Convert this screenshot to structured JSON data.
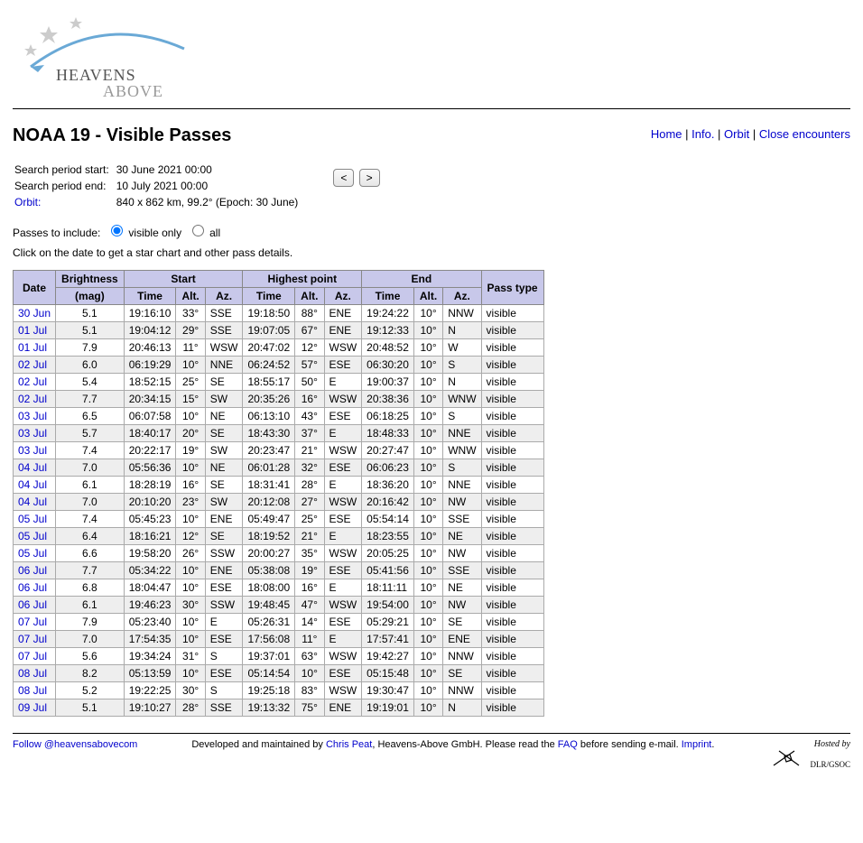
{
  "site": {
    "name": "HEAVENS ABOVE"
  },
  "nav": {
    "home": "Home",
    "info": "Info.",
    "orbit": "Orbit",
    "encounters": "Close encounters",
    "sep": " | "
  },
  "page": {
    "title": "NOAA 19 - Visible Passes",
    "search_start_label": "Search period start:",
    "search_start_value": "30 June 2021 00:00",
    "search_end_label": "Search period end:",
    "search_end_value": "10 July 2021 00:00",
    "orbit_label": "Orbit:",
    "orbit_value": "840 x 862 km, 99.2° (Epoch: 30 June)",
    "prev_btn": "<",
    "next_btn": ">",
    "include_label": "Passes to include:",
    "opt_visible": "visible only",
    "opt_all": "all",
    "hint": "Click on the date to get a star chart and other pass details."
  },
  "table": {
    "headers": {
      "date": "Date",
      "brightness": "Brightness",
      "mag": "(mag)",
      "start": "Start",
      "highest": "Highest point",
      "end": "End",
      "time": "Time",
      "alt": "Alt.",
      "az": "Az.",
      "passtype": "Pass type"
    },
    "rows": [
      {
        "date": "30 Jun",
        "mag": "5.1",
        "s_t": "19:16:10",
        "s_a": "33°",
        "s_z": "SSE",
        "h_t": "19:18:50",
        "h_a": "88°",
        "h_z": "ENE",
        "e_t": "19:24:22",
        "e_a": "10°",
        "e_z": "NNW",
        "type": "visible"
      },
      {
        "date": "01 Jul",
        "mag": "5.1",
        "s_t": "19:04:12",
        "s_a": "29°",
        "s_z": "SSE",
        "h_t": "19:07:05",
        "h_a": "67°",
        "h_z": "ENE",
        "e_t": "19:12:33",
        "e_a": "10°",
        "e_z": "N",
        "type": "visible"
      },
      {
        "date": "01 Jul",
        "mag": "7.9",
        "s_t": "20:46:13",
        "s_a": "11°",
        "s_z": "WSW",
        "h_t": "20:47:02",
        "h_a": "12°",
        "h_z": "WSW",
        "e_t": "20:48:52",
        "e_a": "10°",
        "e_z": "W",
        "type": "visible"
      },
      {
        "date": "02 Jul",
        "mag": "6.0",
        "s_t": "06:19:29",
        "s_a": "10°",
        "s_z": "NNE",
        "h_t": "06:24:52",
        "h_a": "57°",
        "h_z": "ESE",
        "e_t": "06:30:20",
        "e_a": "10°",
        "e_z": "S",
        "type": "visible"
      },
      {
        "date": "02 Jul",
        "mag": "5.4",
        "s_t": "18:52:15",
        "s_a": "25°",
        "s_z": "SE",
        "h_t": "18:55:17",
        "h_a": "50°",
        "h_z": "E",
        "e_t": "19:00:37",
        "e_a": "10°",
        "e_z": "N",
        "type": "visible"
      },
      {
        "date": "02 Jul",
        "mag": "7.7",
        "s_t": "20:34:15",
        "s_a": "15°",
        "s_z": "SW",
        "h_t": "20:35:26",
        "h_a": "16°",
        "h_z": "WSW",
        "e_t": "20:38:36",
        "e_a": "10°",
        "e_z": "WNW",
        "type": "visible"
      },
      {
        "date": "03 Jul",
        "mag": "6.5",
        "s_t": "06:07:58",
        "s_a": "10°",
        "s_z": "NE",
        "h_t": "06:13:10",
        "h_a": "43°",
        "h_z": "ESE",
        "e_t": "06:18:25",
        "e_a": "10°",
        "e_z": "S",
        "type": "visible"
      },
      {
        "date": "03 Jul",
        "mag": "5.7",
        "s_t": "18:40:17",
        "s_a": "20°",
        "s_z": "SE",
        "h_t": "18:43:30",
        "h_a": "37°",
        "h_z": "E",
        "e_t": "18:48:33",
        "e_a": "10°",
        "e_z": "NNE",
        "type": "visible"
      },
      {
        "date": "03 Jul",
        "mag": "7.4",
        "s_t": "20:22:17",
        "s_a": "19°",
        "s_z": "SW",
        "h_t": "20:23:47",
        "h_a": "21°",
        "h_z": "WSW",
        "e_t": "20:27:47",
        "e_a": "10°",
        "e_z": "WNW",
        "type": "visible"
      },
      {
        "date": "04 Jul",
        "mag": "7.0",
        "s_t": "05:56:36",
        "s_a": "10°",
        "s_z": "NE",
        "h_t": "06:01:28",
        "h_a": "32°",
        "h_z": "ESE",
        "e_t": "06:06:23",
        "e_a": "10°",
        "e_z": "S",
        "type": "visible"
      },
      {
        "date": "04 Jul",
        "mag": "6.1",
        "s_t": "18:28:19",
        "s_a": "16°",
        "s_z": "SE",
        "h_t": "18:31:41",
        "h_a": "28°",
        "h_z": "E",
        "e_t": "18:36:20",
        "e_a": "10°",
        "e_z": "NNE",
        "type": "visible"
      },
      {
        "date": "04 Jul",
        "mag": "7.0",
        "s_t": "20:10:20",
        "s_a": "23°",
        "s_z": "SW",
        "h_t": "20:12:08",
        "h_a": "27°",
        "h_z": "WSW",
        "e_t": "20:16:42",
        "e_a": "10°",
        "e_z": "NW",
        "type": "visible"
      },
      {
        "date": "05 Jul",
        "mag": "7.4",
        "s_t": "05:45:23",
        "s_a": "10°",
        "s_z": "ENE",
        "h_t": "05:49:47",
        "h_a": "25°",
        "h_z": "ESE",
        "e_t": "05:54:14",
        "e_a": "10°",
        "e_z": "SSE",
        "type": "visible"
      },
      {
        "date": "05 Jul",
        "mag": "6.4",
        "s_t": "18:16:21",
        "s_a": "12°",
        "s_z": "SE",
        "h_t": "18:19:52",
        "h_a": "21°",
        "h_z": "E",
        "e_t": "18:23:55",
        "e_a": "10°",
        "e_z": "NE",
        "type": "visible"
      },
      {
        "date": "05 Jul",
        "mag": "6.6",
        "s_t": "19:58:20",
        "s_a": "26°",
        "s_z": "SSW",
        "h_t": "20:00:27",
        "h_a": "35°",
        "h_z": "WSW",
        "e_t": "20:05:25",
        "e_a": "10°",
        "e_z": "NW",
        "type": "visible"
      },
      {
        "date": "06 Jul",
        "mag": "7.7",
        "s_t": "05:34:22",
        "s_a": "10°",
        "s_z": "ENE",
        "h_t": "05:38:08",
        "h_a": "19°",
        "h_z": "ESE",
        "e_t": "05:41:56",
        "e_a": "10°",
        "e_z": "SSE",
        "type": "visible"
      },
      {
        "date": "06 Jul",
        "mag": "6.8",
        "s_t": "18:04:47",
        "s_a": "10°",
        "s_z": "ESE",
        "h_t": "18:08:00",
        "h_a": "16°",
        "h_z": "E",
        "e_t": "18:11:11",
        "e_a": "10°",
        "e_z": "NE",
        "type": "visible"
      },
      {
        "date": "06 Jul",
        "mag": "6.1",
        "s_t": "19:46:23",
        "s_a": "30°",
        "s_z": "SSW",
        "h_t": "19:48:45",
        "h_a": "47°",
        "h_z": "WSW",
        "e_t": "19:54:00",
        "e_a": "10°",
        "e_z": "NW",
        "type": "visible"
      },
      {
        "date": "07 Jul",
        "mag": "7.9",
        "s_t": "05:23:40",
        "s_a": "10°",
        "s_z": "E",
        "h_t": "05:26:31",
        "h_a": "14°",
        "h_z": "ESE",
        "e_t": "05:29:21",
        "e_a": "10°",
        "e_z": "SE",
        "type": "visible"
      },
      {
        "date": "07 Jul",
        "mag": "7.0",
        "s_t": "17:54:35",
        "s_a": "10°",
        "s_z": "ESE",
        "h_t": "17:56:08",
        "h_a": "11°",
        "h_z": "E",
        "e_t": "17:57:41",
        "e_a": "10°",
        "e_z": "ENE",
        "type": "visible"
      },
      {
        "date": "07 Jul",
        "mag": "5.6",
        "s_t": "19:34:24",
        "s_a": "31°",
        "s_z": "S",
        "h_t": "19:37:01",
        "h_a": "63°",
        "h_z": "WSW",
        "e_t": "19:42:27",
        "e_a": "10°",
        "e_z": "NNW",
        "type": "visible"
      },
      {
        "date": "08 Jul",
        "mag": "8.2",
        "s_t": "05:13:59",
        "s_a": "10°",
        "s_z": "ESE",
        "h_t": "05:14:54",
        "h_a": "10°",
        "h_z": "ESE",
        "e_t": "05:15:48",
        "e_a": "10°",
        "e_z": "SE",
        "type": "visible"
      },
      {
        "date": "08 Jul",
        "mag": "5.2",
        "s_t": "19:22:25",
        "s_a": "30°",
        "s_z": "S",
        "h_t": "19:25:18",
        "h_a": "83°",
        "h_z": "WSW",
        "e_t": "19:30:47",
        "e_a": "10°",
        "e_z": "NNW",
        "type": "visible"
      },
      {
        "date": "09 Jul",
        "mag": "5.1",
        "s_t": "19:10:27",
        "s_a": "28°",
        "s_z": "SSE",
        "h_t": "19:13:32",
        "h_a": "75°",
        "h_z": "ENE",
        "e_t": "19:19:01",
        "e_a": "10°",
        "e_z": "N",
        "type": "visible"
      }
    ]
  },
  "footer": {
    "follow": "Follow @heavensabovecom",
    "dev1": "Developed and maintained by ",
    "chris": "Chris Peat",
    "dev2": ", Heavens-Above GmbH. Please read the ",
    "faq": "FAQ",
    "dev3": " before sending e-mail. ",
    "imprint": "Imprint",
    "dot": ".",
    "hosted": "Hosted by",
    "dlr": "DLR/GSOC"
  }
}
